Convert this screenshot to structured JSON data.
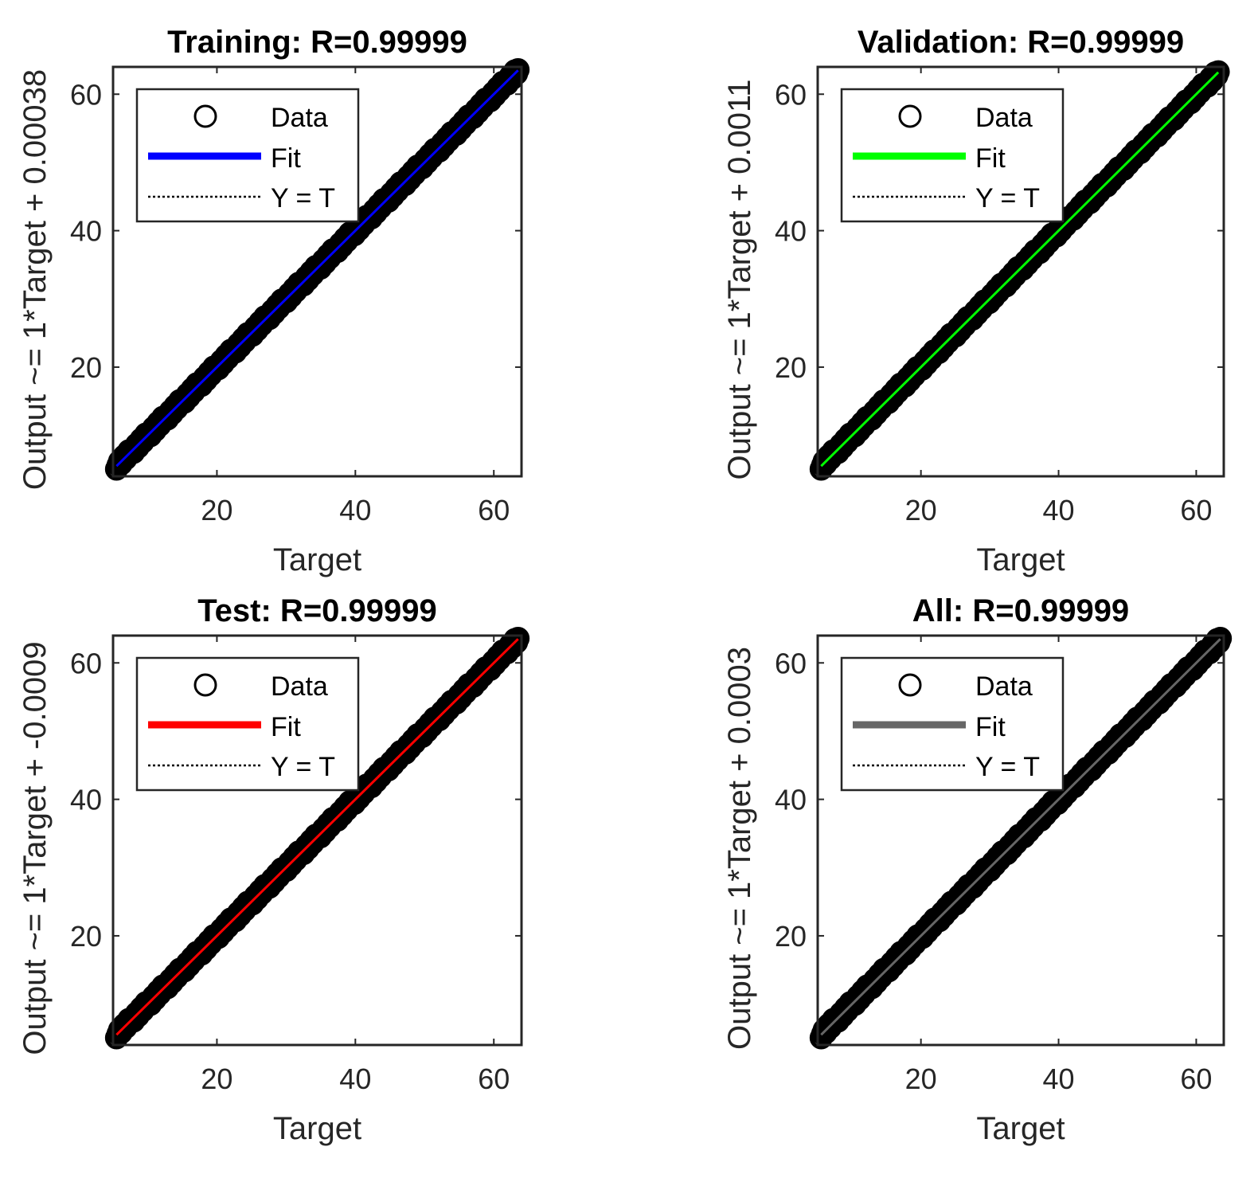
{
  "chart_data": [
    {
      "type": "scatter",
      "title": "Training: R=0.99999",
      "xlabel": "Target",
      "ylabel": "Output ~= 1*Target + 0.00038",
      "xlim": [
        5,
        64
      ],
      "ylim": [
        4,
        64
      ],
      "xticks": [
        "20",
        "40",
        "60"
      ],
      "yticks": [
        "20",
        "40",
        "60"
      ],
      "fit_color": "#0000ff",
      "fit": {
        "slope": 1,
        "intercept": 0.00038
      },
      "data_range": [
        5.5,
        63.5
      ],
      "legend": {
        "position": "top-left",
        "entries": [
          "Data",
          "Fit",
          "Y = T"
        ]
      }
    },
    {
      "type": "scatter",
      "title": "Validation: R=0.99999",
      "xlabel": "Target",
      "ylabel": "Output ~= 1*Target + 0.0011",
      "xlim": [
        5,
        64
      ],
      "ylim": [
        4,
        64
      ],
      "xticks": [
        "20",
        "40",
        "60"
      ],
      "yticks": [
        "20",
        "40",
        "60"
      ],
      "fit_color": "#00ff00",
      "fit": {
        "slope": 1,
        "intercept": 0.0011
      },
      "data_range": [
        5.5,
        63.2
      ],
      "legend": {
        "position": "top-left",
        "entries": [
          "Data",
          "Fit",
          "Y = T"
        ]
      }
    },
    {
      "type": "scatter",
      "title": "Test: R=0.99999",
      "xlabel": "Target",
      "ylabel": "Output ~= 1*Target + -0.0009",
      "xlim": [
        5,
        64
      ],
      "ylim": [
        4,
        64
      ],
      "xticks": [
        "20",
        "40",
        "60"
      ],
      "yticks": [
        "20",
        "40",
        "60"
      ],
      "fit_color": "#ff0000",
      "fit": {
        "slope": 1,
        "intercept": -0.0009
      },
      "data_range": [
        5.5,
        63.5
      ],
      "legend": {
        "position": "top-left",
        "entries": [
          "Data",
          "Fit",
          "Y = T"
        ]
      }
    },
    {
      "type": "scatter",
      "title": "All: R=0.99999",
      "xlabel": "Target",
      "ylabel": "Output ~= 1*Target + 0.0003",
      "xlim": [
        5,
        64
      ],
      "ylim": [
        4,
        64
      ],
      "xticks": [
        "20",
        "40",
        "60"
      ],
      "yticks": [
        "20",
        "40",
        "60"
      ],
      "fit_color": "#666666",
      "fit": {
        "slope": 1,
        "intercept": 0.0003
      },
      "data_range": [
        5.5,
        63.5
      ],
      "legend": {
        "position": "top-left",
        "entries": [
          "Data",
          "Fit",
          "Y = T"
        ]
      }
    }
  ]
}
